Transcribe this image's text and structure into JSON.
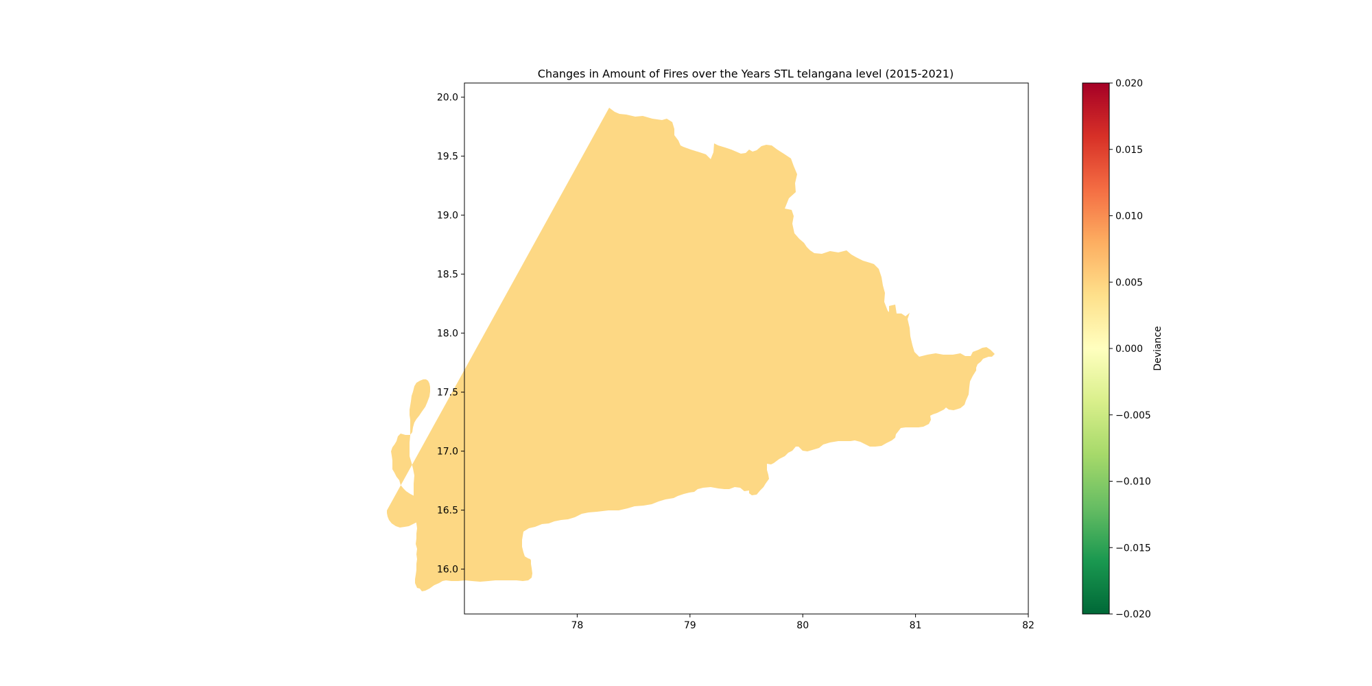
{
  "map": {
    "title": "Changes in Amount of Fires over the Years STL telangana level (2015-2021)",
    "region_name": "telangana",
    "region_color": "#fdd884",
    "x_ticks": [
      "78",
      "79",
      "80",
      "81",
      "82"
    ],
    "y_ticks": [
      "16.0",
      "16.5",
      "17.0",
      "17.5",
      "18.0",
      "18.5",
      "19.0",
      "19.5",
      "20.0"
    ],
    "xlim": [
      77.0,
      82.0
    ],
    "ylim": [
      15.62,
      20.12
    ]
  },
  "colorbar": {
    "label": "Deviance",
    "ticks": [
      "0.020",
      "0.015",
      "0.010",
      "0.005",
      "0.000",
      "−0.005",
      "−0.010",
      "−0.015",
      "−0.020"
    ],
    "range": [
      -0.02,
      0.02
    ],
    "colormap": "RdYlGn_r",
    "gradient_stops": [
      "#a50026",
      "#d73027",
      "#f46d43",
      "#fdae61",
      "#fee08b",
      "#ffffbf",
      "#d9ef8b",
      "#a6d96a",
      "#66bd63",
      "#1a9850",
      "#006837"
    ]
  },
  "chart_data": {
    "type": "map",
    "title": "Changes in Amount of Fires over the Years STL telangana level (2015-2021)",
    "xlabel": "",
    "ylabel": "",
    "xlim": [
      77.0,
      82.0
    ],
    "ylim": [
      15.62,
      20.12
    ],
    "regions": [
      {
        "name": "telangana",
        "value": 0.005
      }
    ],
    "colorbar": {
      "label": "Deviance",
      "range": [
        -0.02,
        0.02
      ]
    }
  }
}
